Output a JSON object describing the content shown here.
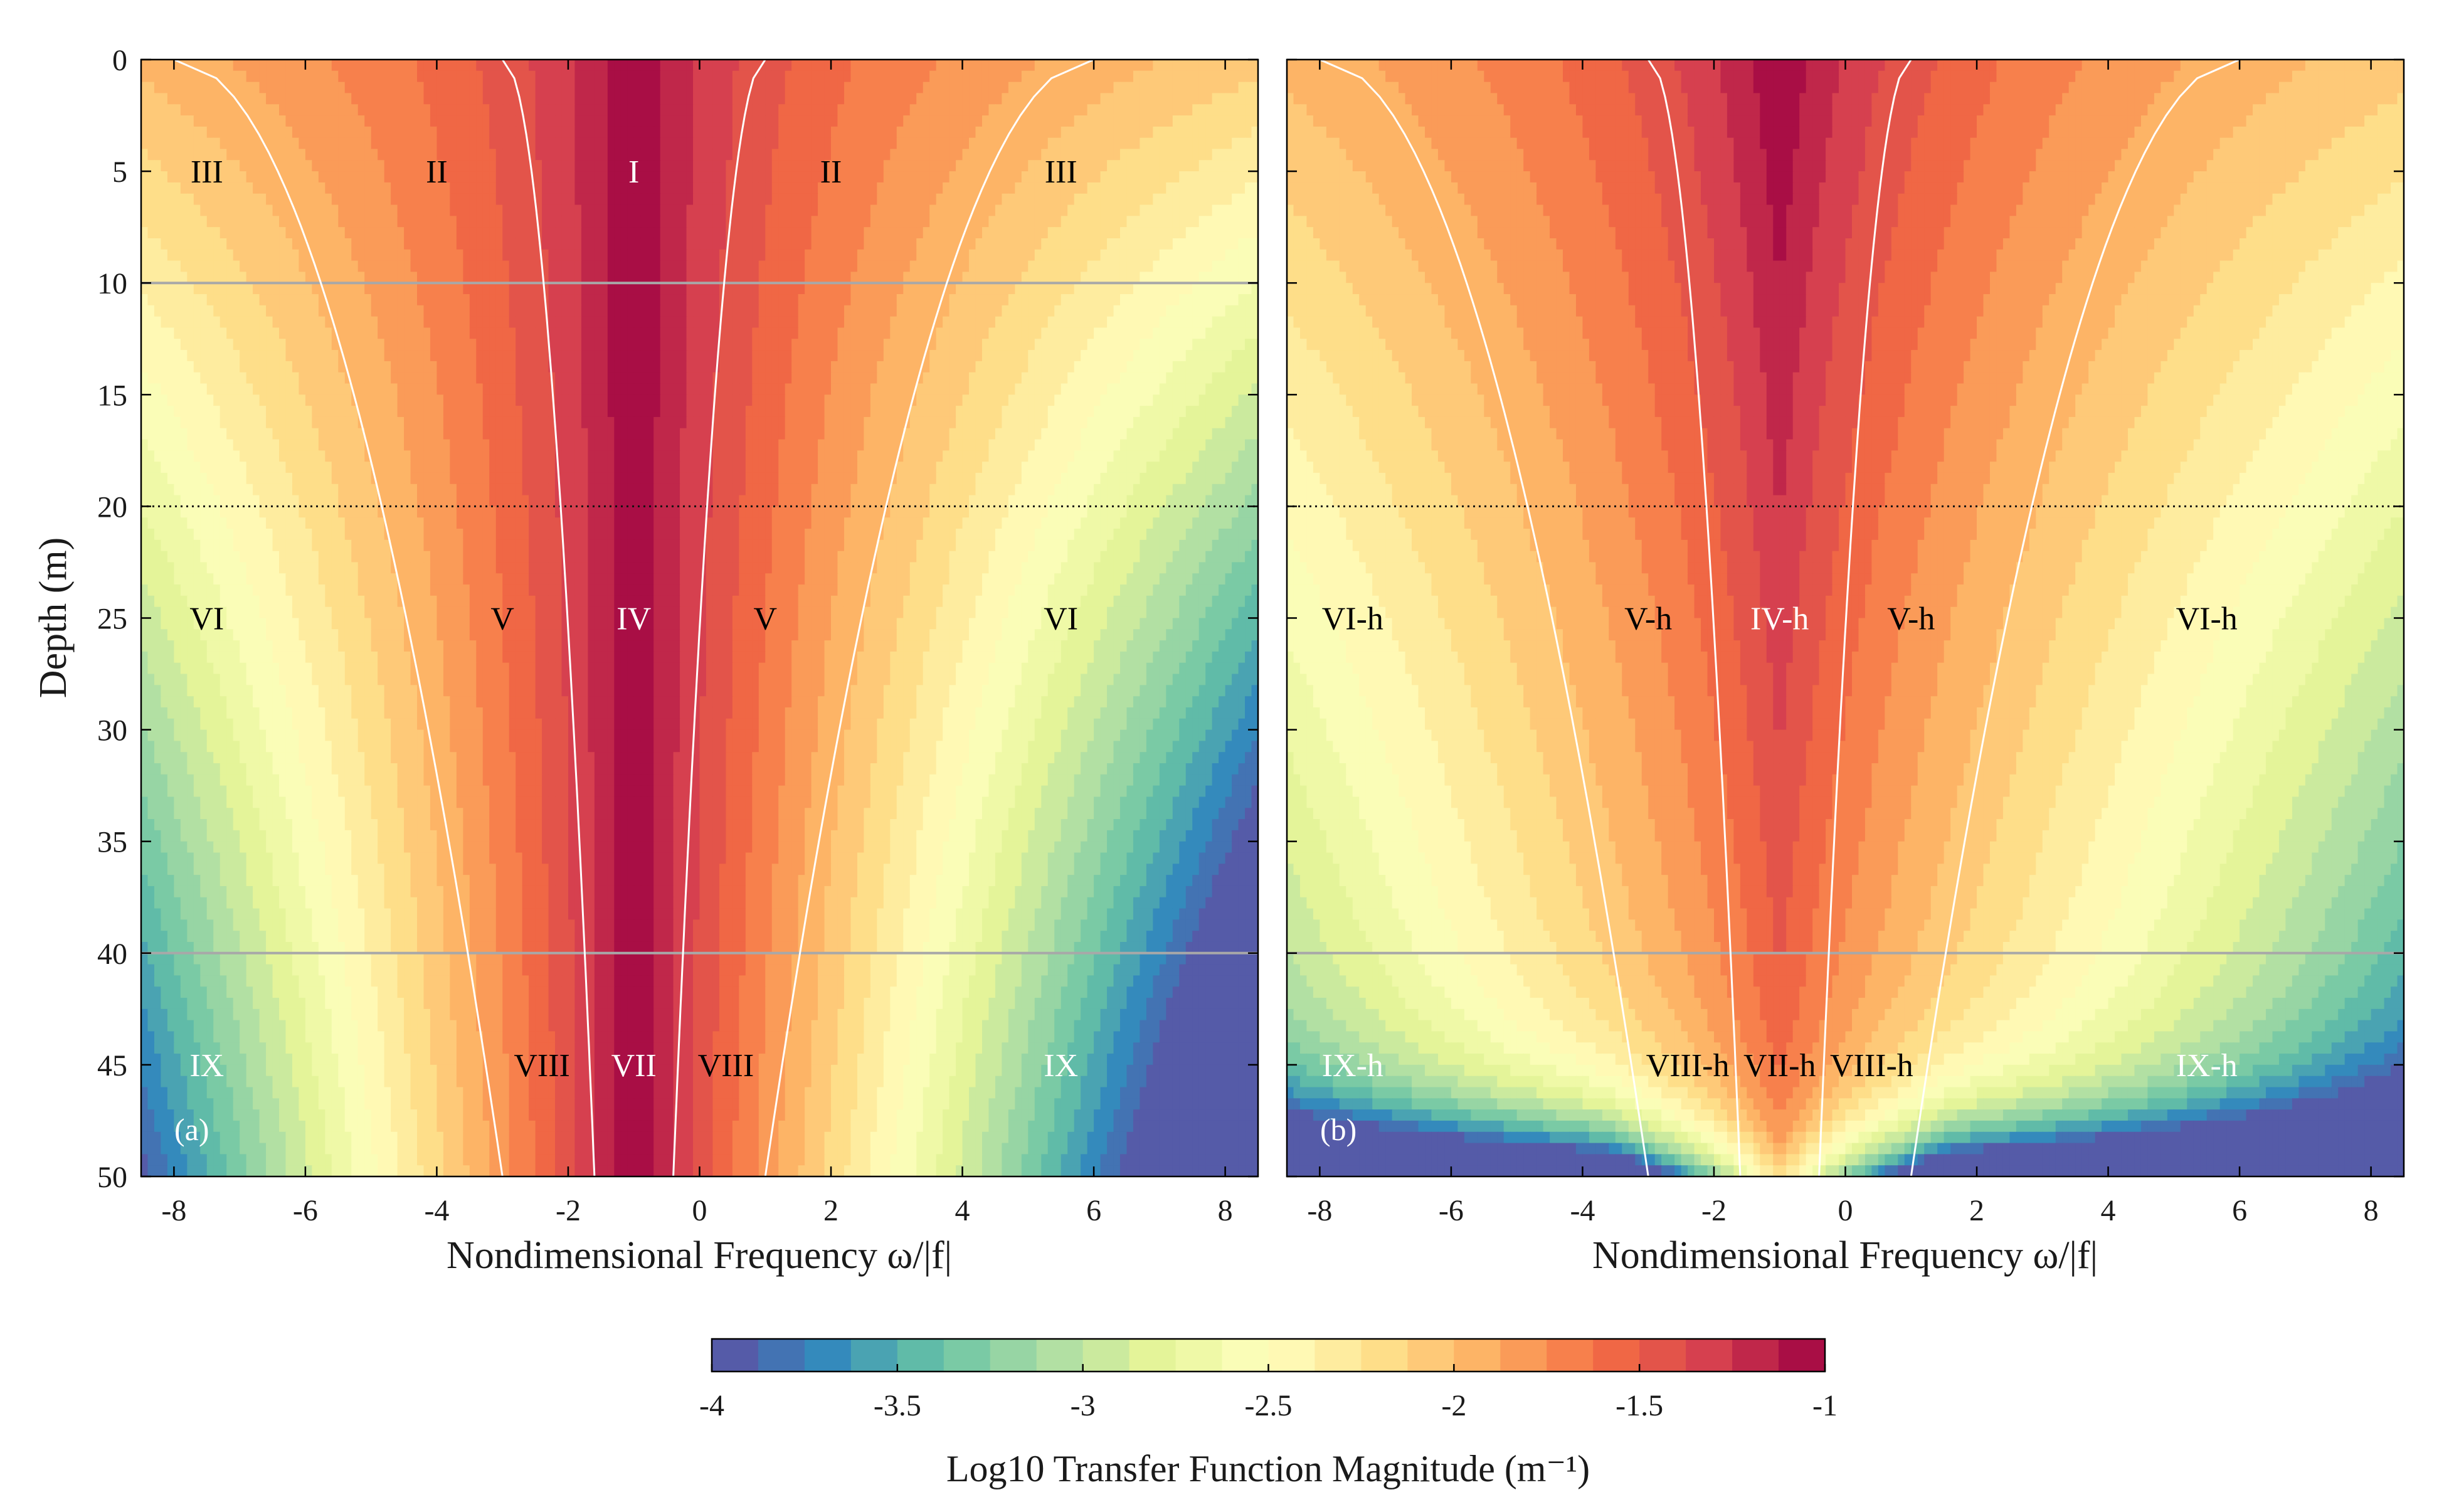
{
  "chart_data": [
    {
      "type": "heatmap",
      "panel_label": "(a)",
      "xlabel": "Nondimensional Frequency ω/|f|",
      "ylabel": "Depth (m)",
      "xlim": [
        -8.5,
        8.5
      ],
      "ylim": [
        0,
        50
      ],
      "y_reversed": true,
      "xticks": [
        -8,
        -6,
        -4,
        -2,
        0,
        2,
        4,
        6,
        8
      ],
      "yticks": [
        0,
        5,
        10,
        15,
        20,
        25,
        30,
        35,
        40,
        45,
        50
      ],
      "field_parameters": {
        "peak_frequency": -1.0,
        "bottom_damping": false
      },
      "boundary_curves": [
        {
          "x_top": -8.0,
          "x_bottom": -3.0
        },
        {
          "x_top": -3.0,
          "x_bottom": -1.6
        },
        {
          "x_top": 1.0,
          "x_bottom": -0.4
        },
        {
          "x_top": 6.0,
          "x_bottom": 1.0
        }
      ],
      "horizontal_lines": [
        {
          "depth": 10,
          "style": "solid-gray"
        },
        {
          "depth": 20,
          "style": "dotted-black"
        },
        {
          "depth": 40,
          "style": "solid-gray"
        }
      ],
      "region_labels": [
        {
          "text": "III",
          "x": -7.5,
          "depth": 5,
          "color": "#000000"
        },
        {
          "text": "II",
          "x": -4.0,
          "depth": 5,
          "color": "#000000"
        },
        {
          "text": "I",
          "x": -1.0,
          "depth": 5,
          "color": "#ffffff"
        },
        {
          "text": "II",
          "x": 2.0,
          "depth": 5,
          "color": "#000000"
        },
        {
          "text": "III",
          "x": 5.5,
          "depth": 5,
          "color": "#000000"
        },
        {
          "text": "VI",
          "x": -7.5,
          "depth": 25,
          "color": "#000000"
        },
        {
          "text": "V",
          "x": -3.0,
          "depth": 25,
          "color": "#000000"
        },
        {
          "text": "IV",
          "x": -1.0,
          "depth": 25,
          "color": "#ffffff"
        },
        {
          "text": "V",
          "x": 1.0,
          "depth": 25,
          "color": "#000000"
        },
        {
          "text": "VI",
          "x": 5.5,
          "depth": 25,
          "color": "#000000"
        },
        {
          "text": "IX",
          "x": -7.5,
          "depth": 45,
          "color": "#ffffff"
        },
        {
          "text": "VIII",
          "x": -2.4,
          "depth": 45,
          "color": "#000000"
        },
        {
          "text": "VII",
          "x": -1.0,
          "depth": 45,
          "color": "#ffffff"
        },
        {
          "text": "VIII",
          "x": 0.4,
          "depth": 45,
          "color": "#000000"
        },
        {
          "text": "IX",
          "x": 5.5,
          "depth": 45,
          "color": "#ffffff"
        }
      ]
    },
    {
      "type": "heatmap",
      "panel_label": "(b)",
      "xlabel": "Nondimensional Frequency ω/|f|",
      "ylabel": "",
      "xlim": [
        -8.5,
        8.5
      ],
      "ylim": [
        0,
        50
      ],
      "y_reversed": true,
      "xticks": [
        -8,
        -6,
        -4,
        -2,
        0,
        2,
        4,
        6,
        8
      ],
      "yticks": [
        0,
        5,
        10,
        15,
        20,
        25,
        30,
        35,
        40,
        45,
        50
      ],
      "field_parameters": {
        "peak_frequency": -1.0,
        "bottom_damping": true
      },
      "boundary_curves": [
        {
          "x_top": -8.0,
          "x_bottom": -3.0
        },
        {
          "x_top": -3.0,
          "x_bottom": -1.6
        },
        {
          "x_top": 1.0,
          "x_bottom": -0.4
        },
        {
          "x_top": 6.0,
          "x_bottom": 1.0
        }
      ],
      "horizontal_lines": [
        {
          "depth": 20,
          "style": "dotted-black"
        },
        {
          "depth": 40,
          "style": "solid-gray"
        }
      ],
      "region_labels": [
        {
          "text": "VI-h",
          "x": -7.5,
          "depth": 25,
          "color": "#000000"
        },
        {
          "text": "V-h",
          "x": -3.0,
          "depth": 25,
          "color": "#000000"
        },
        {
          "text": "IV-h",
          "x": -1.0,
          "depth": 25,
          "color": "#ffffff"
        },
        {
          "text": "V-h",
          "x": 1.0,
          "depth": 25,
          "color": "#000000"
        },
        {
          "text": "VI-h",
          "x": 5.5,
          "depth": 25,
          "color": "#000000"
        },
        {
          "text": "IX-h",
          "x": -7.5,
          "depth": 45,
          "color": "#ffffff"
        },
        {
          "text": "VIII-h",
          "x": -2.4,
          "depth": 45,
          "color": "#000000"
        },
        {
          "text": "VII-h",
          "x": -1.0,
          "depth": 45,
          "color": "#000000"
        },
        {
          "text": "VIII-h",
          "x": 0.4,
          "depth": 45,
          "color": "#000000"
        },
        {
          "text": "IX-h",
          "x": 5.5,
          "depth": 45,
          "color": "#ffffff"
        }
      ]
    }
  ],
  "colorbar": {
    "label": "Log10 Transfer Function Magnitude (m⁻¹)",
    "range": [
      -4,
      -1
    ],
    "ticks": [
      -4,
      -3.5,
      -3,
      -2.5,
      -2,
      -1.5,
      -1
    ],
    "tick_labels": [
      "-4",
      "-3.5",
      "-3",
      "-2.5",
      "-2",
      "-1.5",
      "-1"
    ],
    "levels": 24,
    "colormap": [
      "#5e4fa2",
      "#3288bd",
      "#66c2a5",
      "#abdda4",
      "#e6f598",
      "#ffffbf",
      "#fee08b",
      "#fdae61",
      "#f46d43",
      "#d53e4f",
      "#9e0142"
    ]
  }
}
